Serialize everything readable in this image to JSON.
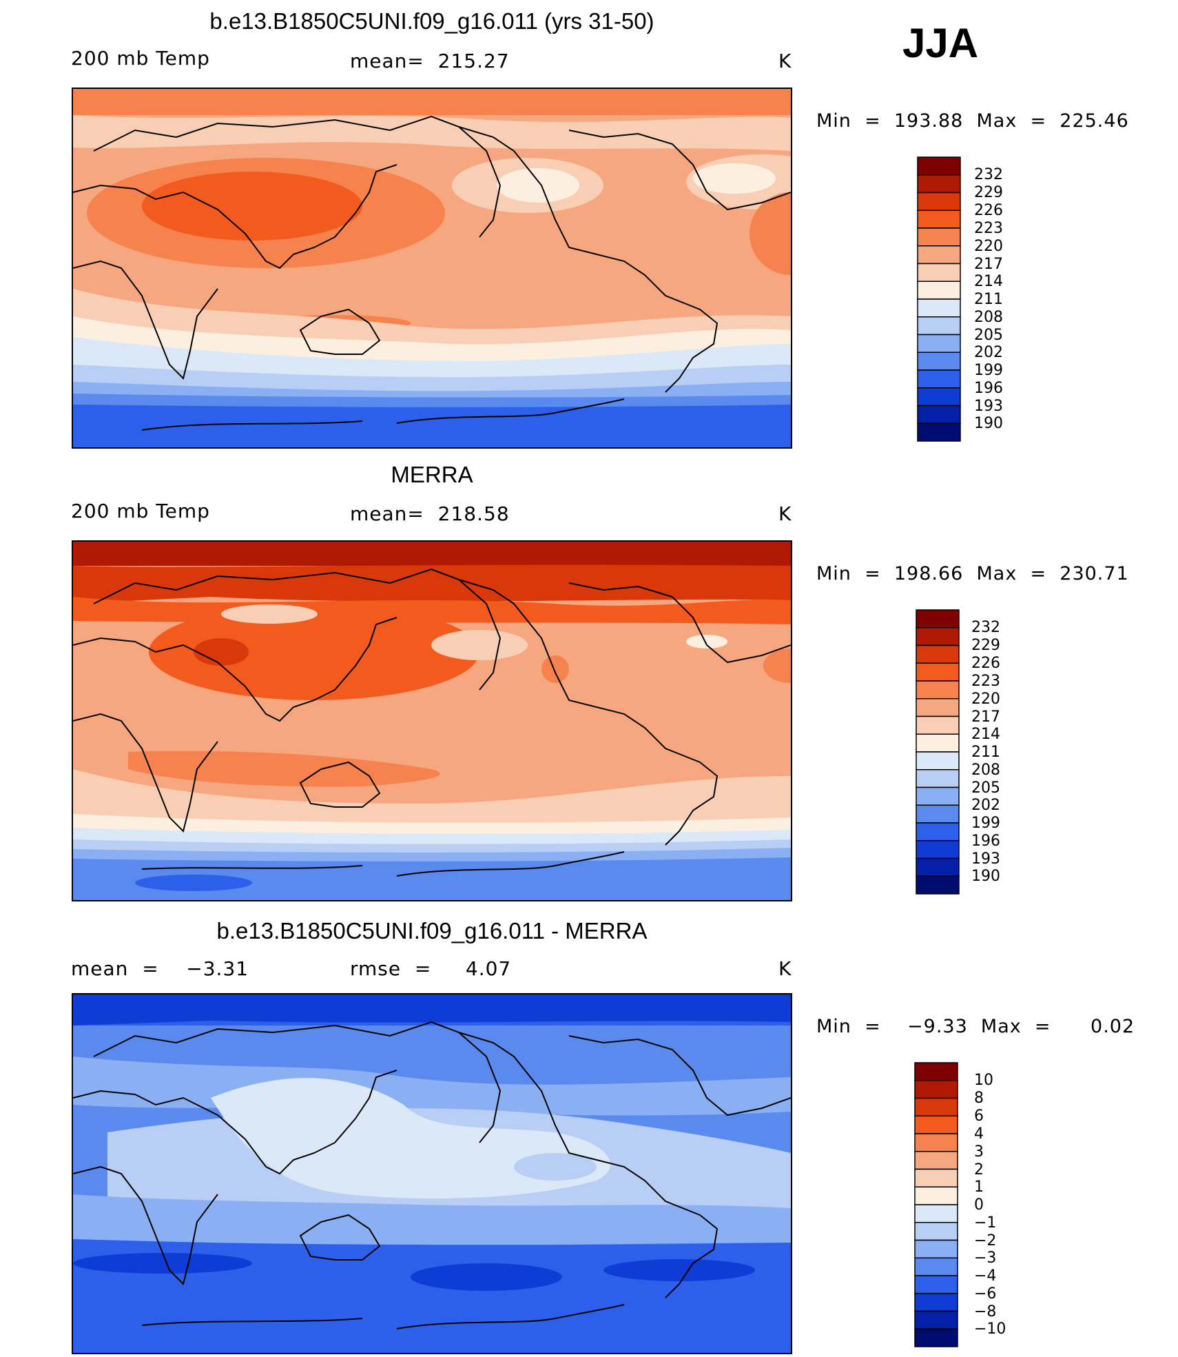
{
  "season": "JJA",
  "panels": [
    {
      "title": "b.e13.B1850C5UNI.f09_g16.011 (yrs 31-50)",
      "left": "200 mb Temp",
      "center": "mean=  215.27",
      "right": "K",
      "minmax": "Min  =  193.88  Max  =  225.46",
      "colorbar_labels": [
        "232",
        "229",
        "226",
        "223",
        "220",
        "217",
        "214",
        "211",
        "208",
        "205",
        "202",
        "199",
        "196",
        "193",
        "190"
      ]
    },
    {
      "title": "MERRA",
      "left": "200 mb Temp",
      "center": "mean=  218.58",
      "right": "K",
      "minmax": "Min  =  198.66  Max  =  230.71",
      "colorbar_labels": [
        "232",
        "229",
        "226",
        "223",
        "220",
        "217",
        "214",
        "211",
        "208",
        "205",
        "202",
        "199",
        "196",
        "193",
        "190"
      ]
    },
    {
      "title": "b.e13.B1850C5UNI.f09_g16.011 - MERRA",
      "left": "mean  =    −3.31",
      "center": "rmse  =     4.07",
      "right": "K",
      "minmax": "Min  =    −9.33  Max  =      0.02",
      "colorbar_labels": [
        "10",
        "8",
        "6",
        "4",
        "3",
        "2",
        "1",
        "0",
        "−1",
        "−2",
        "−3",
        "−4",
        "−6",
        "−8",
        "−10"
      ]
    }
  ],
  "palette": [
    "#7f0000",
    "#b01a04",
    "#d8380a",
    "#f35a1e",
    "#f6824e",
    "#f7a77f",
    "#f8cfb5",
    "#fcefe0",
    "#dbe8f8",
    "#b8cef5",
    "#8aaff2",
    "#5a8aee",
    "#2c60ea",
    "#103cd6",
    "#0420a8",
    "#000c6f"
  ]
}
